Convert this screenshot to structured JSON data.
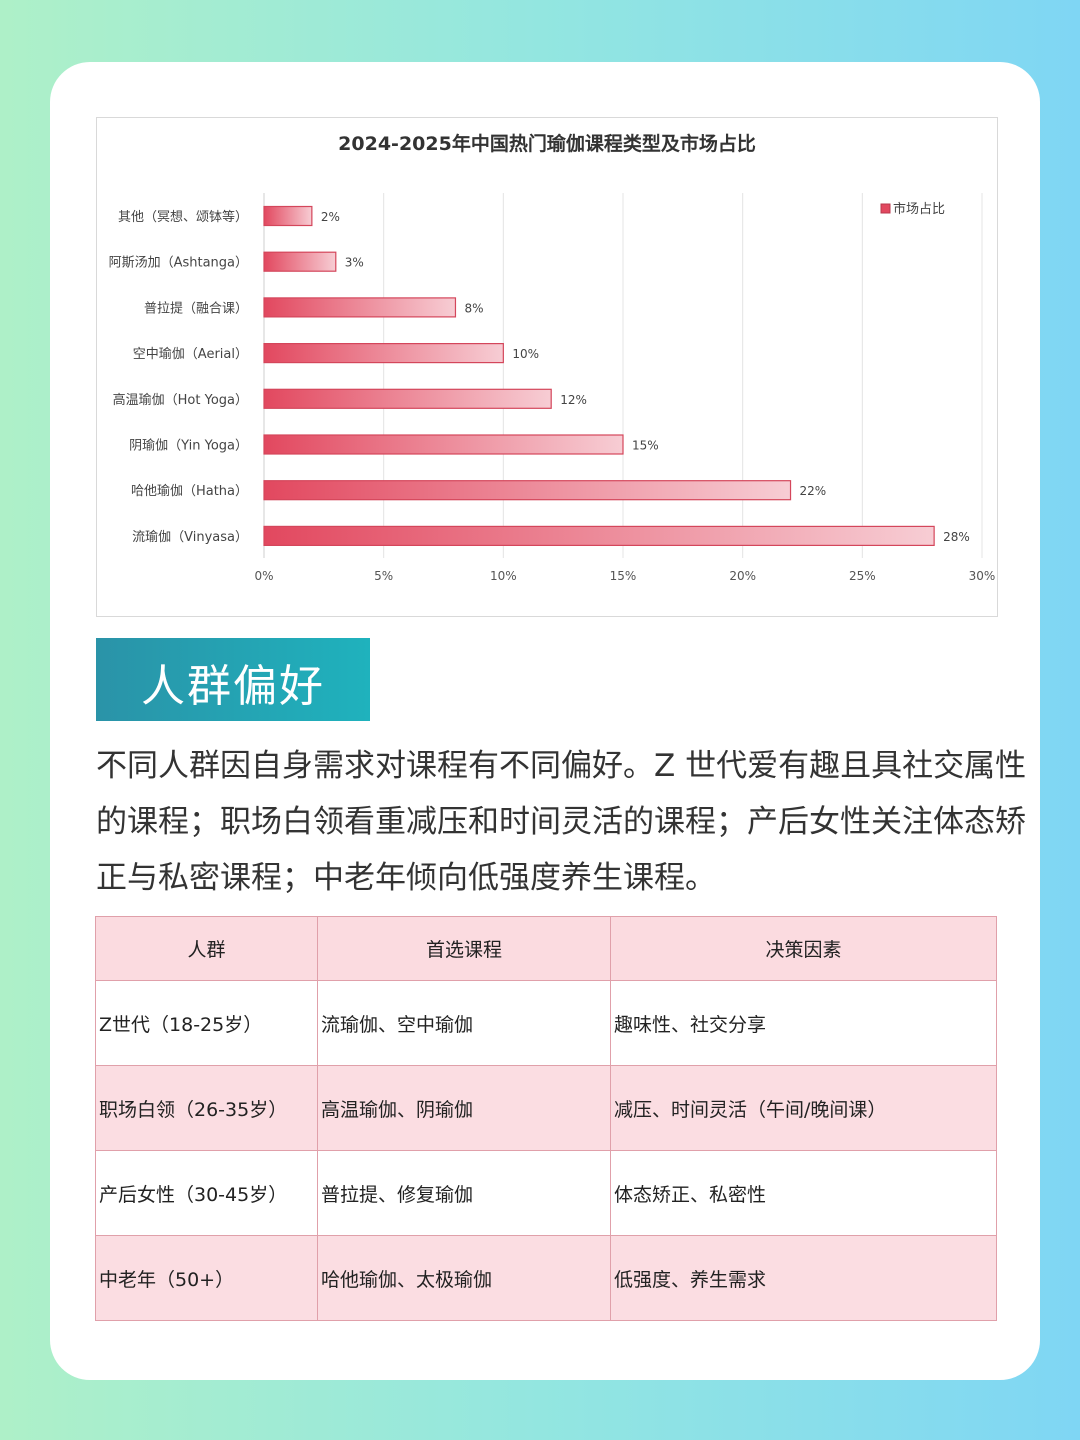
{
  "chart_data": {
    "type": "bar",
    "orientation": "horizontal",
    "title": "2024-2025年中国热门瑜伽课程类型及市场占比",
    "categories": [
      "其他（冥想、颂钵等）",
      "阿斯汤加（Ashtanga）",
      "普拉提（融合课）",
      "空中瑜伽（Aerial）",
      "高温瑜伽（Hot Yoga）",
      "阴瑜伽（Yin Yoga）",
      "哈他瑜伽（Hatha）",
      "流瑜伽（Vinyasa）"
    ],
    "series": [
      {
        "name": "市场占比",
        "values": [
          2,
          3,
          8,
          10,
          12,
          15,
          22,
          28
        ]
      }
    ],
    "data_labels": [
      "2%",
      "3%",
      "8%",
      "10%",
      "12%",
      "15%",
      "22%",
      "28%"
    ],
    "x_ticks": [
      "0%",
      "5%",
      "10%",
      "15%",
      "20%",
      "25%",
      "30%"
    ],
    "xlim": [
      0,
      30
    ],
    "grid": "vertical",
    "legend_position": "top-right",
    "bar_color": "#e2485f"
  },
  "section": {
    "title": "人群偏好",
    "paragraph": "不同人群因自身需求对课程有不同偏好。Z 世代爱有趣且具社交属性的课程；职场白领看重减压和时间灵活的课程；产后女性关注体态矫正与私密课程；中老年倾向低强度养生课程。"
  },
  "table": {
    "headers": [
      "人群",
      "首选课程",
      "决策因素"
    ],
    "rows": [
      [
        "Z世代（18-25岁）",
        "流瑜伽、空中瑜伽",
        "趣味性、社交分享"
      ],
      [
        "职场白领（26-35岁）",
        "高温瑜伽、阴瑜伽",
        "减压、时间灵活（午间/晚间课）"
      ],
      [
        "产后女性（30-45岁）",
        "普拉提、修复瑜伽",
        "体态矫正、私密性"
      ],
      [
        "中老年（50+）",
        "哈他瑜伽、太极瑜伽",
        "低强度、养生需求"
      ]
    ]
  },
  "colors": {
    "banner": "#2a93a8",
    "table_header_bg": "#fbdbe0",
    "table_stripe_bg": "#fbdde2"
  }
}
